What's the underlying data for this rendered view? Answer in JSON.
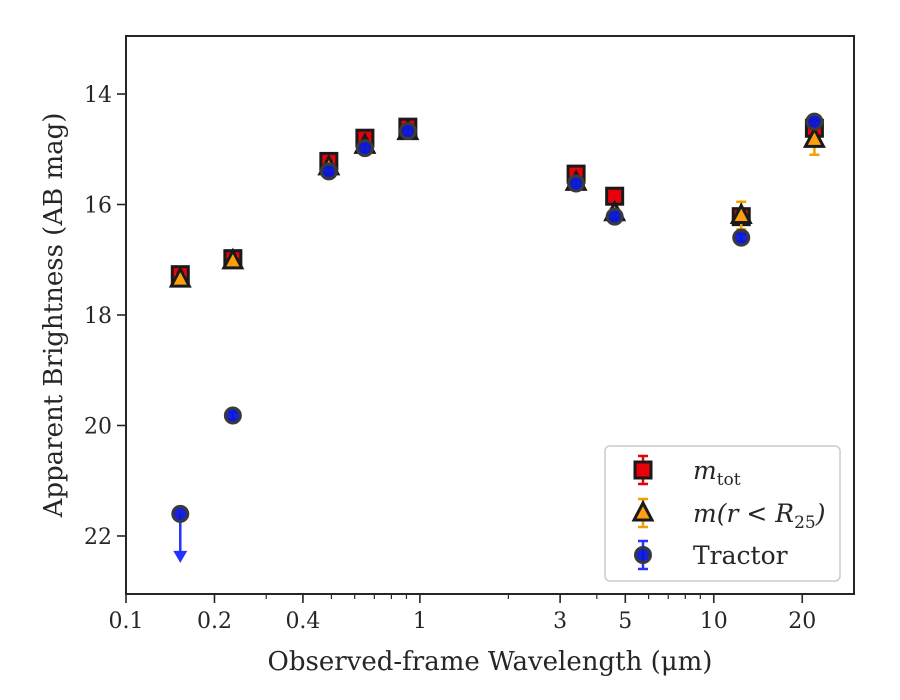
{
  "chart_data": {
    "type": "scatter",
    "title": "",
    "xlabel": "Observed-frame Wavelength (μm)",
    "ylabel": "Apparent Brightness (AB mag)",
    "xscale": "log",
    "xlim": [
      0.1,
      30
    ],
    "ylim": [
      23.05,
      12.95
    ],
    "y_inverted": true,
    "xticks": [
      {
        "value": 0.1,
        "label": "0.1"
      },
      {
        "value": 0.2,
        "label": "0.2"
      },
      {
        "value": 0.4,
        "label": "0.4"
      },
      {
        "value": 1,
        "label": "1"
      },
      {
        "value": 3,
        "label": "3"
      },
      {
        "value": 5,
        "label": "5"
      },
      {
        "value": 10,
        "label": "10"
      },
      {
        "value": 20,
        "label": "20"
      }
    ],
    "yticks": [
      {
        "value": 14,
        "label": "14"
      },
      {
        "value": 16,
        "label": "16"
      },
      {
        "value": 18,
        "label": "18"
      },
      {
        "value": 20,
        "label": "20"
      },
      {
        "value": 22,
        "label": "22"
      }
    ],
    "grid": false,
    "legend_position": "lower-right",
    "series": [
      {
        "name": "m_tot",
        "legend_main": "m",
        "legend_sub": "tot",
        "marker": "square",
        "color": "#e8000b",
        "errcolor": "#e8000b",
        "x": [
          0.153,
          0.231,
          0.49,
          0.65,
          0.91,
          3.4,
          4.6,
          12.4,
          22.0
        ],
        "y": [
          17.27,
          16.98,
          15.22,
          14.8,
          14.6,
          15.45,
          15.85,
          16.22,
          14.62
        ],
        "err": [
          0.04,
          0.03,
          0.02,
          0.02,
          0.02,
          0.03,
          0.03,
          0.08,
          0.1
        ]
      },
      {
        "name": "m(r < R25)",
        "legend_main": "m(r < R",
        "legend_sub": "25",
        "legend_close": ")",
        "marker": "triangle",
        "color": "#ff9f0e",
        "errcolor": "#f0a000",
        "x": [
          0.153,
          0.231,
          0.49,
          0.65,
          0.91,
          3.4,
          4.6,
          12.4,
          22.0
        ],
        "y": [
          17.35,
          17.02,
          15.32,
          14.93,
          14.68,
          15.6,
          16.15,
          16.2,
          14.82
        ],
        "err": [
          0.04,
          0.03,
          0.02,
          0.02,
          0.02,
          0.03,
          0.05,
          0.25,
          0.28
        ]
      },
      {
        "name": "Tractor",
        "legend_main": "Tractor",
        "marker": "circle",
        "color": "#0a17d6",
        "errcolor": "#2233ff",
        "x": [
          0.153,
          0.231,
          0.49,
          0.65,
          0.91,
          3.4,
          4.6,
          12.4,
          22.0
        ],
        "y": [
          21.6,
          19.82,
          15.4,
          14.98,
          14.67,
          15.62,
          16.22,
          16.6,
          14.5
        ],
        "err": [
          0.0,
          0.05,
          0.03,
          0.02,
          0.02,
          0.03,
          0.04,
          0.06,
          0.05
        ],
        "upper_limit_index": 0,
        "upper_limit_to": 22.45
      }
    ]
  }
}
